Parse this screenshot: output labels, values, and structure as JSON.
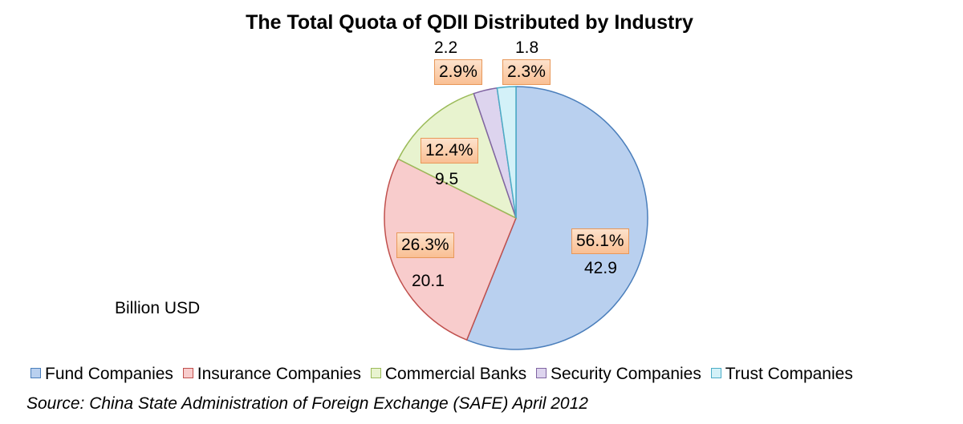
{
  "chart_data": {
    "type": "pie",
    "title": "The Total Quota of QDII Distributed by Industry",
    "unit_label": "Billion USD",
    "source": "Source: China State Administration of Foreign Exchange (SAFE) April 2012",
    "legend_position": "bottom",
    "slices": [
      {
        "name": "Fund Companies",
        "value": 42.9,
        "value_label": "42.9",
        "percent": 56.1,
        "percent_label": "56.1%",
        "color": "#b9d0ef",
        "stroke": "#4a7ebb"
      },
      {
        "name": "Insurance Companies",
        "value": 20.1,
        "value_label": "20.1",
        "percent": 26.3,
        "percent_label": "26.3%",
        "color": "#f8cccc",
        "stroke": "#c0504d"
      },
      {
        "name": "Commercial Banks",
        "value": 9.5,
        "value_label": "9.5",
        "percent": 12.4,
        "percent_label": "12.4%",
        "color": "#e8f3cf",
        "stroke": "#9bbb59"
      },
      {
        "name": "Security Companies",
        "value": 2.2,
        "value_label": "2.2",
        "percent": 2.9,
        "percent_label": "2.9%",
        "color": "#ddd4ee",
        "stroke": "#8064a2"
      },
      {
        "name": "Trust Companies",
        "value": 1.8,
        "value_label": "1.8",
        "percent": 2.3,
        "percent_label": "2.3%",
        "color": "#d3f1f8",
        "stroke": "#4bacc6"
      }
    ]
  }
}
